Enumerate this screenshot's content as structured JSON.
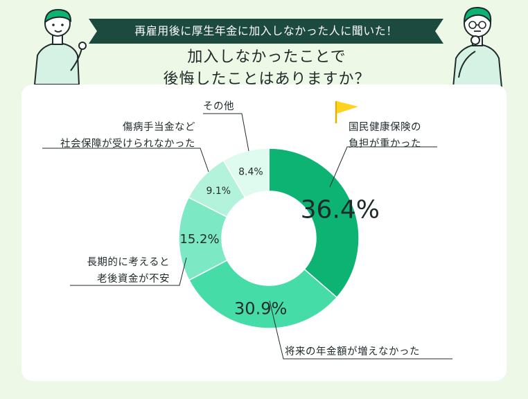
{
  "header": {
    "banner": "再雇用後に厚生年金に加入しなかった人に聞いた！",
    "question_line1": "加入しなかったことで",
    "question_line2": "後悔したことはありますか？"
  },
  "chart_data": {
    "type": "pie",
    "donut": true,
    "categories": [
      "国民健康保険の負担が重かった",
      "将来の年金額が増えなかった",
      "長期的に考えると老後資金が不安",
      "傷病手当金など社会保障が受けられなかった",
      "その他"
    ],
    "values": [
      36.4,
      30.9,
      15.2,
      9.1,
      8.4
    ],
    "value_labels": [
      "36.4%",
      "30.9%",
      "15.2%",
      "9.1%",
      "8.4%"
    ],
    "label_lines": [
      [
        "国民健康保険の",
        "負担が重かった"
      ],
      [
        "将来の年金額が増えなかった"
      ],
      [
        "長期的に考えると",
        "老後資金が不安"
      ],
      [
        "傷病手当金など",
        "社会保障が受けられなかった"
      ],
      [
        "その他"
      ]
    ],
    "colors": [
      "#0db372",
      "#46dca8",
      "#7de9c4",
      "#b3f3dc",
      "#dffaef"
    ],
    "highlight_icon": "yellow-flag-icon"
  }
}
